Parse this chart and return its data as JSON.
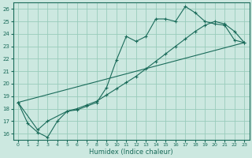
{
  "xlabel": "Humidex (Indice chaleur)",
  "bg_color": "#cce8e0",
  "grid_color": "#99ccbb",
  "line_color": "#1a6b5a",
  "xlim": [
    -0.5,
    23.5
  ],
  "ylim": [
    15.5,
    26.5
  ],
  "xticks": [
    0,
    1,
    2,
    3,
    4,
    5,
    6,
    7,
    8,
    9,
    10,
    11,
    12,
    13,
    14,
    15,
    16,
    17,
    18,
    19,
    20,
    21,
    22,
    23
  ],
  "yticks": [
    16,
    17,
    18,
    19,
    20,
    21,
    22,
    23,
    24,
    25,
    26
  ],
  "series1_x": [
    0,
    1,
    2,
    3,
    4,
    5,
    6,
    7,
    8,
    9,
    10,
    11,
    12,
    13,
    14,
    15,
    16,
    17,
    18,
    19,
    20,
    21,
    22,
    23
  ],
  "series1_y": [
    18.5,
    16.8,
    16.1,
    15.7,
    17.0,
    17.8,
    17.9,
    18.2,
    18.5,
    19.7,
    21.9,
    23.8,
    23.4,
    23.8,
    25.2,
    25.2,
    25.0,
    26.2,
    25.7,
    25.0,
    24.8,
    24.7,
    23.5,
    23.3
  ],
  "series2_x": [
    0,
    2,
    3,
    5,
    6,
    7,
    8,
    9,
    10,
    11,
    12,
    13,
    14,
    15,
    16,
    17,
    18,
    19,
    20,
    21,
    22,
    23
  ],
  "series2_y": [
    18.5,
    16.3,
    17.0,
    17.8,
    18.0,
    18.3,
    18.6,
    19.1,
    19.6,
    20.1,
    20.6,
    21.2,
    21.8,
    22.4,
    23.0,
    23.6,
    24.2,
    24.7,
    25.0,
    24.8,
    24.2,
    23.3
  ],
  "series3_x": [
    0,
    23
  ],
  "series3_y": [
    18.5,
    23.3
  ]
}
